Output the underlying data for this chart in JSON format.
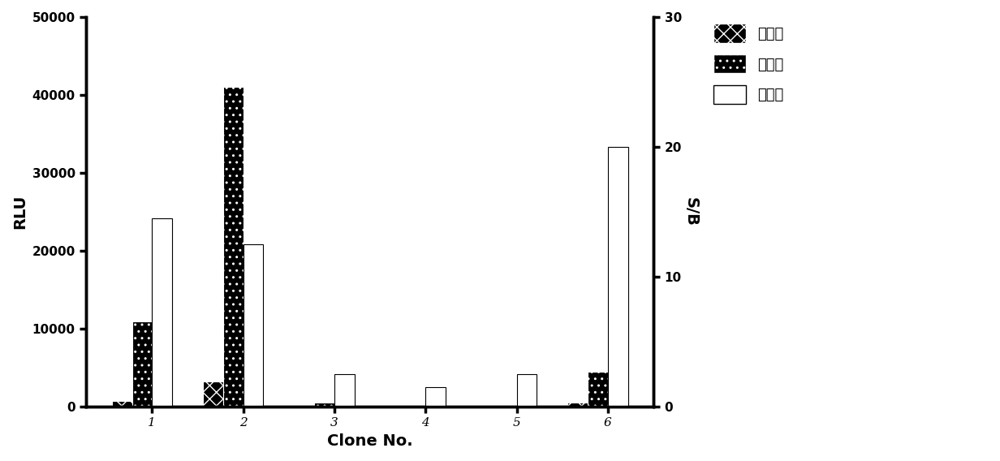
{
  "clones": [
    "1",
    "2",
    "3",
    "4",
    "5",
    "6"
  ],
  "kongbai": [
    800,
    3300,
    150,
    100,
    150,
    500
  ],
  "jiayao": [
    11000,
    41000,
    500,
    200,
    200,
    4500
  ],
  "xinzaobi": [
    14.5,
    12.5,
    2.5,
    1.5,
    2.5,
    20.0
  ],
  "ylabel_left": "RLU",
  "ylabel_right": "S/B",
  "xlabel": "Clone No.",
  "ylim_left": [
    0,
    50000
  ],
  "ylim_right": [
    0,
    30
  ],
  "yticks_left": [
    0,
    10000,
    20000,
    30000,
    40000,
    50000
  ],
  "yticks_right": [
    0,
    10,
    20,
    30
  ],
  "legend_labels": [
    "空白组",
    "加药组",
    "信噪比"
  ],
  "bar_width": 0.22,
  "bg_color": "#ffffff"
}
